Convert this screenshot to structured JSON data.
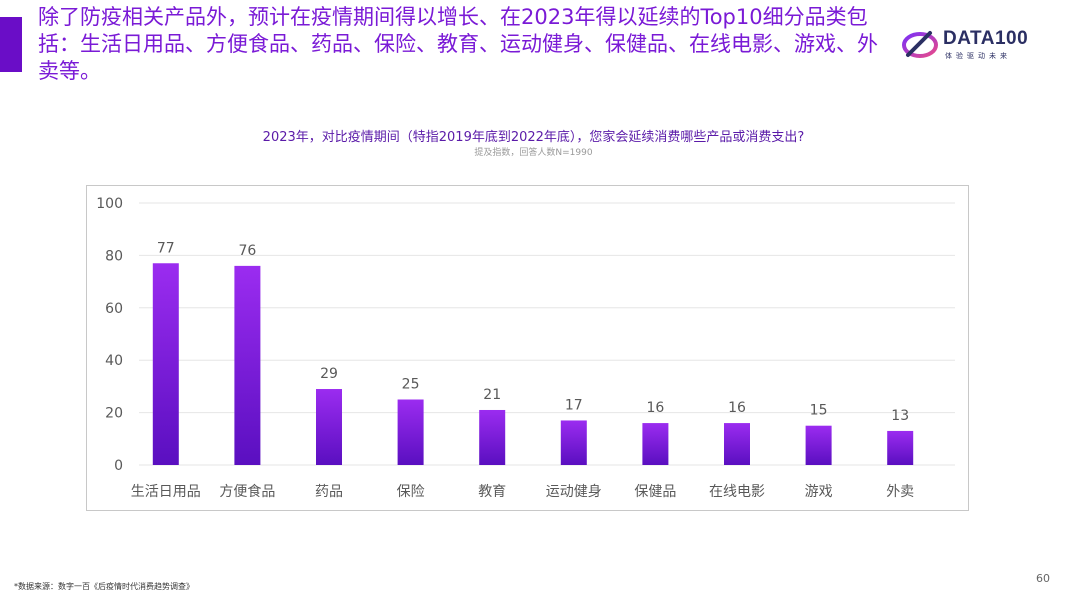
{
  "headline": "除了防疫相关产品外，预计在疫情期间得以增长、在2023年得以延续的Top10细分品类包括：生活日用品、方便食品、药品、保险、教育、运动健身、保健品、在线电影、游戏、外卖等。",
  "logo": {
    "text": "DATA100",
    "sub": "体验驱动未来"
  },
  "chart_data": {
    "type": "bar",
    "title": "2023年，对比疫情期间（特指2019年底到2022年底），您家会延续消费哪些产品或消费支出?",
    "subtitle": "提及指数，回答人数N=1990",
    "categories": [
      "生活日用品",
      "方便食品",
      "药品",
      "保险",
      "教育",
      "运动健身",
      "保健品",
      "在线电影",
      "游戏",
      "外卖"
    ],
    "values": [
      77,
      76,
      29,
      25,
      21,
      17,
      16,
      16,
      15,
      13
    ],
    "ylim": [
      0,
      100
    ],
    "yticks": [
      0,
      20,
      40,
      60,
      80,
      100
    ],
    "grid": true,
    "bar_color_top": "#9b2cf0",
    "bar_color_bottom": "#5a0fc0"
  },
  "footnote": "*数据来源：数字一百《后疫情时代消费趋势调查》",
  "page_number": "60",
  "colors": {
    "accent": "#6a0dc7",
    "headline": "#7a1ad6",
    "label": "#595959",
    "grid": "#e6e6e6"
  }
}
